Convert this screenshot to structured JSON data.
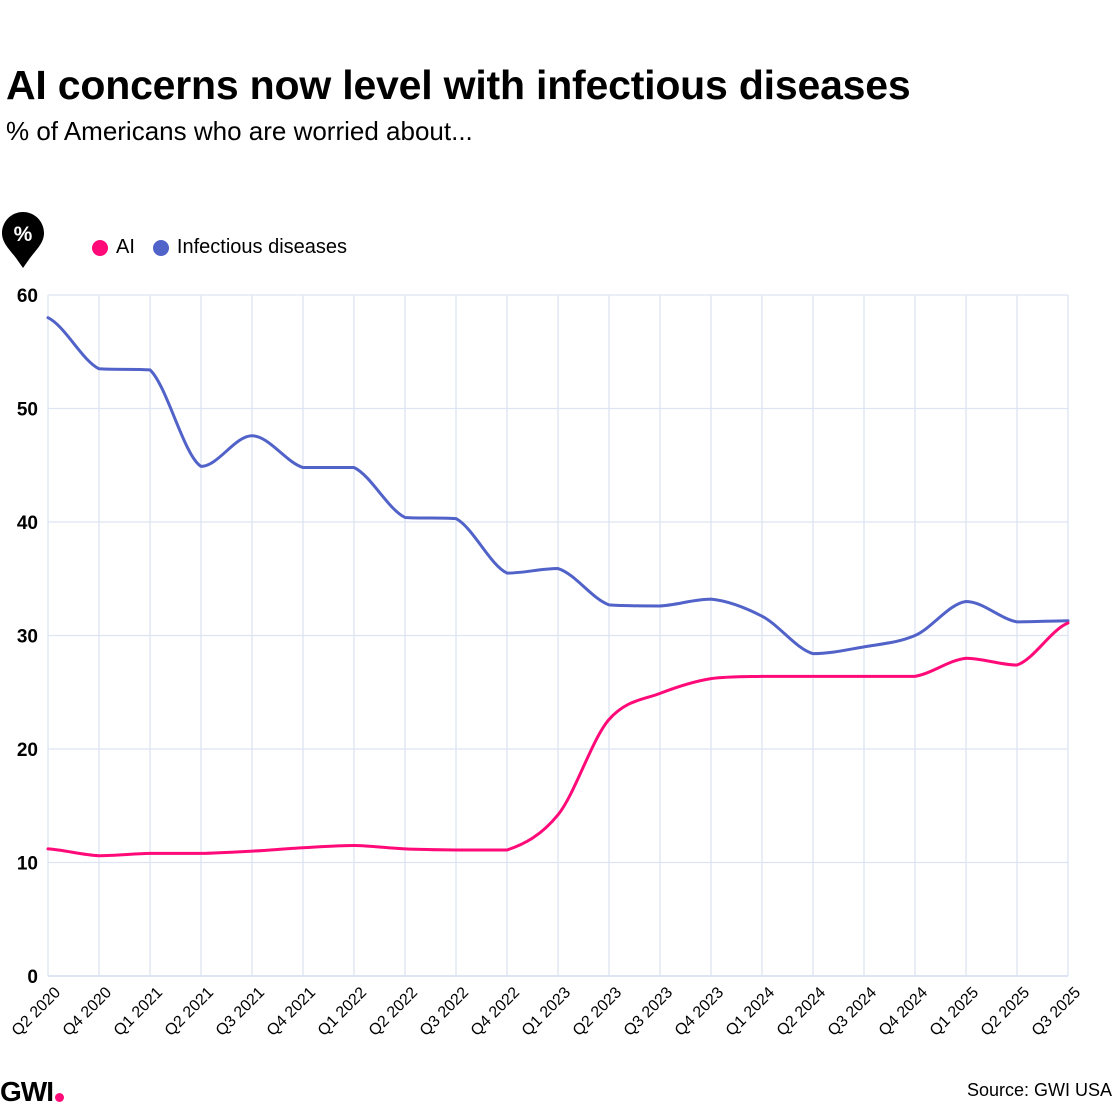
{
  "header": {
    "title": "AI concerns now level with infectious diseases",
    "subtitle": "% of Americans who are worried about..."
  },
  "unit_badge": {
    "symbol": "%",
    "icon": "percent-pin-icon"
  },
  "colors": {
    "ai": "#ff0a78",
    "infectious": "#5162c8",
    "grid": "#dde4f2",
    "text": "#000000",
    "brand_dot": "#ff0a78"
  },
  "footer": {
    "logo_text": "GWI",
    "source": "Source: GWI USA"
  },
  "chart_data": {
    "type": "line",
    "title": "AI concerns now level with infectious diseases",
    "subtitle": "% of Americans who are worried about...",
    "xlabel": "",
    "ylabel": "%",
    "ylim": [
      0,
      60
    ],
    "yticks": [
      0,
      10,
      20,
      30,
      40,
      50,
      60
    ],
    "grid": true,
    "legend_position": "top-left",
    "categories": [
      "Q2 2020",
      "Q4 2020",
      "Q1 2021",
      "Q2 2021",
      "Q3 2021",
      "Q4 2021",
      "Q1 2022",
      "Q2 2022",
      "Q3 2022",
      "Q4 2022",
      "Q1 2023",
      "Q2 2023",
      "Q3 2023",
      "Q4 2023",
      "Q1 2024",
      "Q2 2024",
      "Q3 2024",
      "Q4 2024",
      "Q1 2025",
      "Q2 2025",
      "Q3 2025"
    ],
    "series": [
      {
        "name": "AI",
        "color": "#ff0a78",
        "values": [
          11.2,
          10.6,
          10.8,
          10.8,
          11.0,
          11.3,
          11.5,
          11.2,
          11.1,
          11.1,
          14.2,
          22.6,
          24.9,
          26.2,
          26.4,
          26.4,
          26.4,
          26.4,
          28.0,
          27.4,
          31.1
        ]
      },
      {
        "name": "Infectious diseases",
        "color": "#5162c8",
        "values": [
          58.0,
          53.5,
          53.4,
          44.9,
          47.6,
          44.8,
          44.8,
          40.4,
          40.3,
          35.5,
          35.9,
          32.7,
          32.6,
          33.2,
          31.7,
          28.4,
          29.0,
          30.0,
          33.0,
          31.2,
          31.3
        ]
      }
    ]
  }
}
